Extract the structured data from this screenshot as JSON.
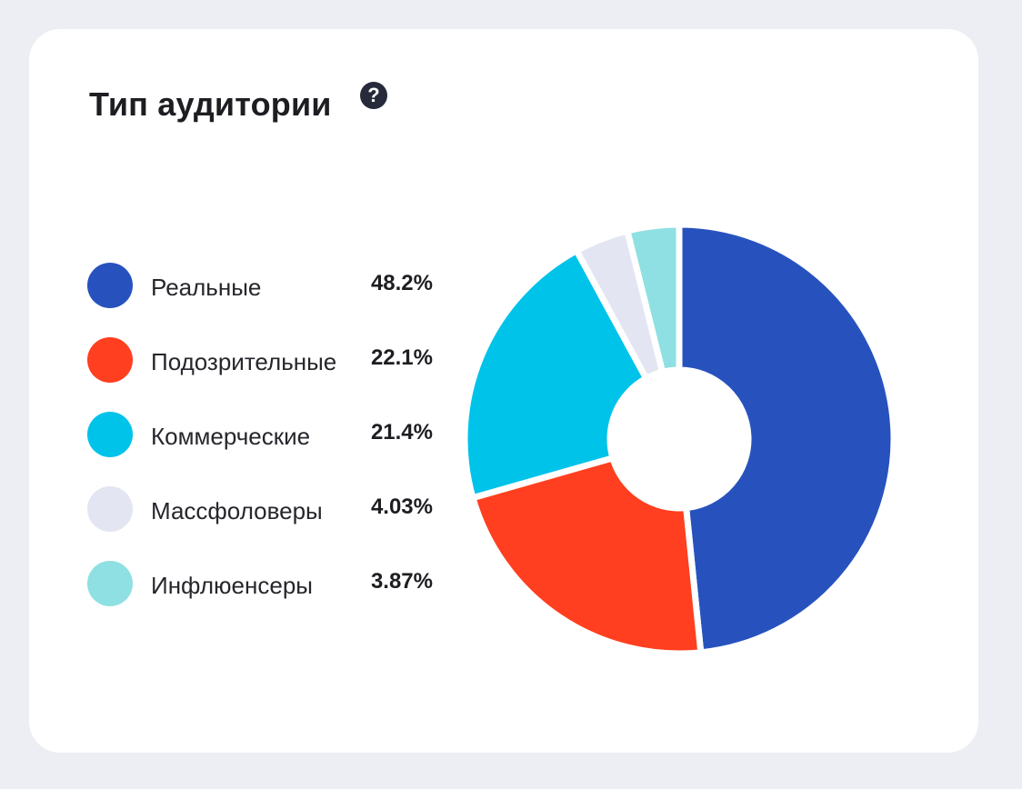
{
  "card": {
    "title": "Тип аудитории",
    "help_icon": "?"
  },
  "chart_data": {
    "type": "pie",
    "title": "Тип аудитории",
    "donut": true,
    "legend_position": "left",
    "slices": [
      {
        "label": "Реальные",
        "value": 48.2,
        "display": "48.2%",
        "color": "#2752be"
      },
      {
        "label": "Подозрительные",
        "value": 22.1,
        "display": "22.1%",
        "color": "#ff3f1f"
      },
      {
        "label": "Коммерческие",
        "value": 21.4,
        "display": "21.4%",
        "color": "#00c3ea"
      },
      {
        "label": "Массфоловеры",
        "value": 4.03,
        "display": "4.03%",
        "color": "#e3e5f2"
      },
      {
        "label": "Инфлюенсеры",
        "value": 3.87,
        "display": "3.87%",
        "color": "#8fe0e2"
      }
    ]
  }
}
